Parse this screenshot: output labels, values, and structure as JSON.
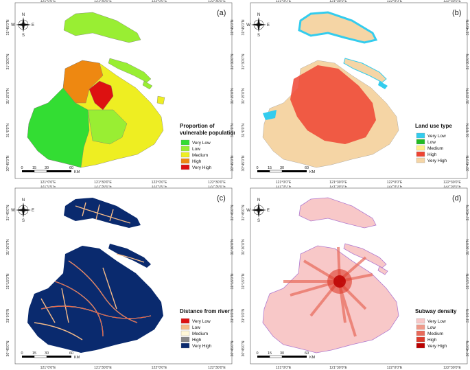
{
  "lon_ticks": [
    "121°0'0\"E",
    "121°30'0\"E",
    "122°0'0\"E",
    "122°30'0\"E"
  ],
  "lat_ticks": [
    "31°45'0\"N",
    "31°30'0\"N",
    "31°15'0\"N",
    "31°0'0\"N",
    "30°45'0\"N"
  ],
  "compass": {
    "n": "N",
    "s": "S",
    "e": "E",
    "w": "W"
  },
  "scale": {
    "ticks": [
      "0",
      "15",
      "30",
      "60"
    ],
    "unit": "KM"
  },
  "panels": [
    {
      "tag": "(a)",
      "legend_title_1": "Proportion of",
      "legend_title_2": "vulnerable population",
      "legend": [
        {
          "label": "Very Low",
          "color": "#33dd33"
        },
        {
          "label": "Low",
          "color": "#99ee33"
        },
        {
          "label": "Medium",
          "color": "#eeee22"
        },
        {
          "label": "High",
          "color": "#ee8811"
        },
        {
          "label": "Very High",
          "color": "#dd1111"
        }
      ]
    },
    {
      "tag": "(b)",
      "legend_title_1": "Land use type",
      "legend_title_2": "",
      "legend": [
        {
          "label": "Very Low",
          "color": "#33ccee"
        },
        {
          "label": "Low",
          "color": "#22bb22"
        },
        {
          "label": "Medium",
          "color": "#ffee88"
        },
        {
          "label": "High",
          "color": "#ee4433"
        },
        {
          "label": "Very High",
          "color": "#f5d5a5"
        }
      ]
    },
    {
      "tag": "(c)",
      "legend_title_1": "Distance from river",
      "legend_title_2": "",
      "legend": [
        {
          "label": "Very Low",
          "color": "#dd1111"
        },
        {
          "label": "Low",
          "color": "#f5bb88"
        },
        {
          "label": "Medium",
          "color": "#fff8d8"
        },
        {
          "label": "High",
          "color": "#888888"
        },
        {
          "label": "Very High",
          "color": "#0a2a6e"
        }
      ]
    },
    {
      "tag": "(d)",
      "legend_title_1": "Subway density",
      "legend_title_2": "",
      "legend": [
        {
          "label": "Very Low",
          "color": "#f8c8c8"
        },
        {
          "label": "Low",
          "color": "#f09a8a"
        },
        {
          "label": "Medium",
          "color": "#e86a5a"
        },
        {
          "label": "High",
          "color": "#dd3a2a"
        },
        {
          "label": "Very High",
          "color": "#bb0000"
        }
      ]
    }
  ]
}
